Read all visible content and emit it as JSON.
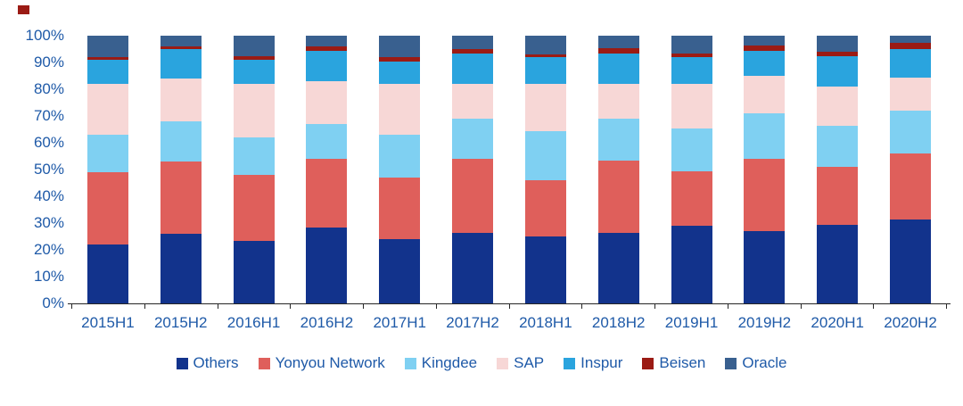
{
  "chart_data": {
    "type": "bar",
    "variant": "stacked-100-percent",
    "title": "",
    "xlabel": "",
    "ylabel": "",
    "ylim": [
      0,
      100
    ],
    "grid": false,
    "legend_position": "bottom",
    "y_ticks": [
      "100%",
      "90%",
      "80%",
      "70%",
      "60%",
      "50%",
      "40%",
      "30%",
      "20%",
      "10%",
      "0%"
    ],
    "categories": [
      "2015H1",
      "2015H2",
      "2016H1",
      "2016H2",
      "2017H1",
      "2017H2",
      "2018H1",
      "2018H2",
      "2019H1",
      "2019H2",
      "2020H1",
      "2020H2"
    ],
    "series": [
      {
        "name": "Others",
        "color": "#12338C",
        "values": [
          22,
          26,
          23.5,
          28.5,
          24,
          26.5,
          25,
          26.5,
          29,
          27,
          29.5,
          31.5
        ]
      },
      {
        "name": "Yonyou Network",
        "color": "#DF5F5B",
        "values": [
          27,
          27,
          24.5,
          25.5,
          23,
          27.5,
          21,
          27,
          20.5,
          27,
          21.5,
          24.5
        ]
      },
      {
        "name": "Kingdee",
        "color": "#7FD0F2",
        "values": [
          14,
          15,
          14,
          13,
          16,
          15,
          18.5,
          15.5,
          16,
          17,
          15.5,
          16
        ]
      },
      {
        "name": "SAP",
        "color": "#F7D7D6",
        "values": [
          19,
          16,
          20,
          16,
          19,
          13,
          17.5,
          13,
          16.5,
          14,
          14.5,
          12.5
        ]
      },
      {
        "name": "Inspur",
        "color": "#2AA4DE",
        "values": [
          9,
          11,
          9,
          11.5,
          8.5,
          11.5,
          10,
          11.5,
          10,
          9.5,
          11.5,
          10.5
        ]
      },
      {
        "name": "Beisen",
        "color": "#9B1B14",
        "values": [
          1,
          1,
          1.5,
          1.5,
          1.5,
          1.5,
          1,
          2,
          1.5,
          2,
          1.5,
          2.5
        ]
      },
      {
        "name": "Oracle",
        "color": "#39608F",
        "values": [
          8,
          4,
          7.5,
          4,
          8,
          5,
          7,
          4.5,
          6.5,
          3.5,
          6,
          2.5
        ]
      }
    ]
  },
  "colors": {
    "axis_text": "#1F5AA8",
    "axis_line": "#262626",
    "background": "#FFFFFF",
    "corner_marker": "#9B1B14"
  }
}
